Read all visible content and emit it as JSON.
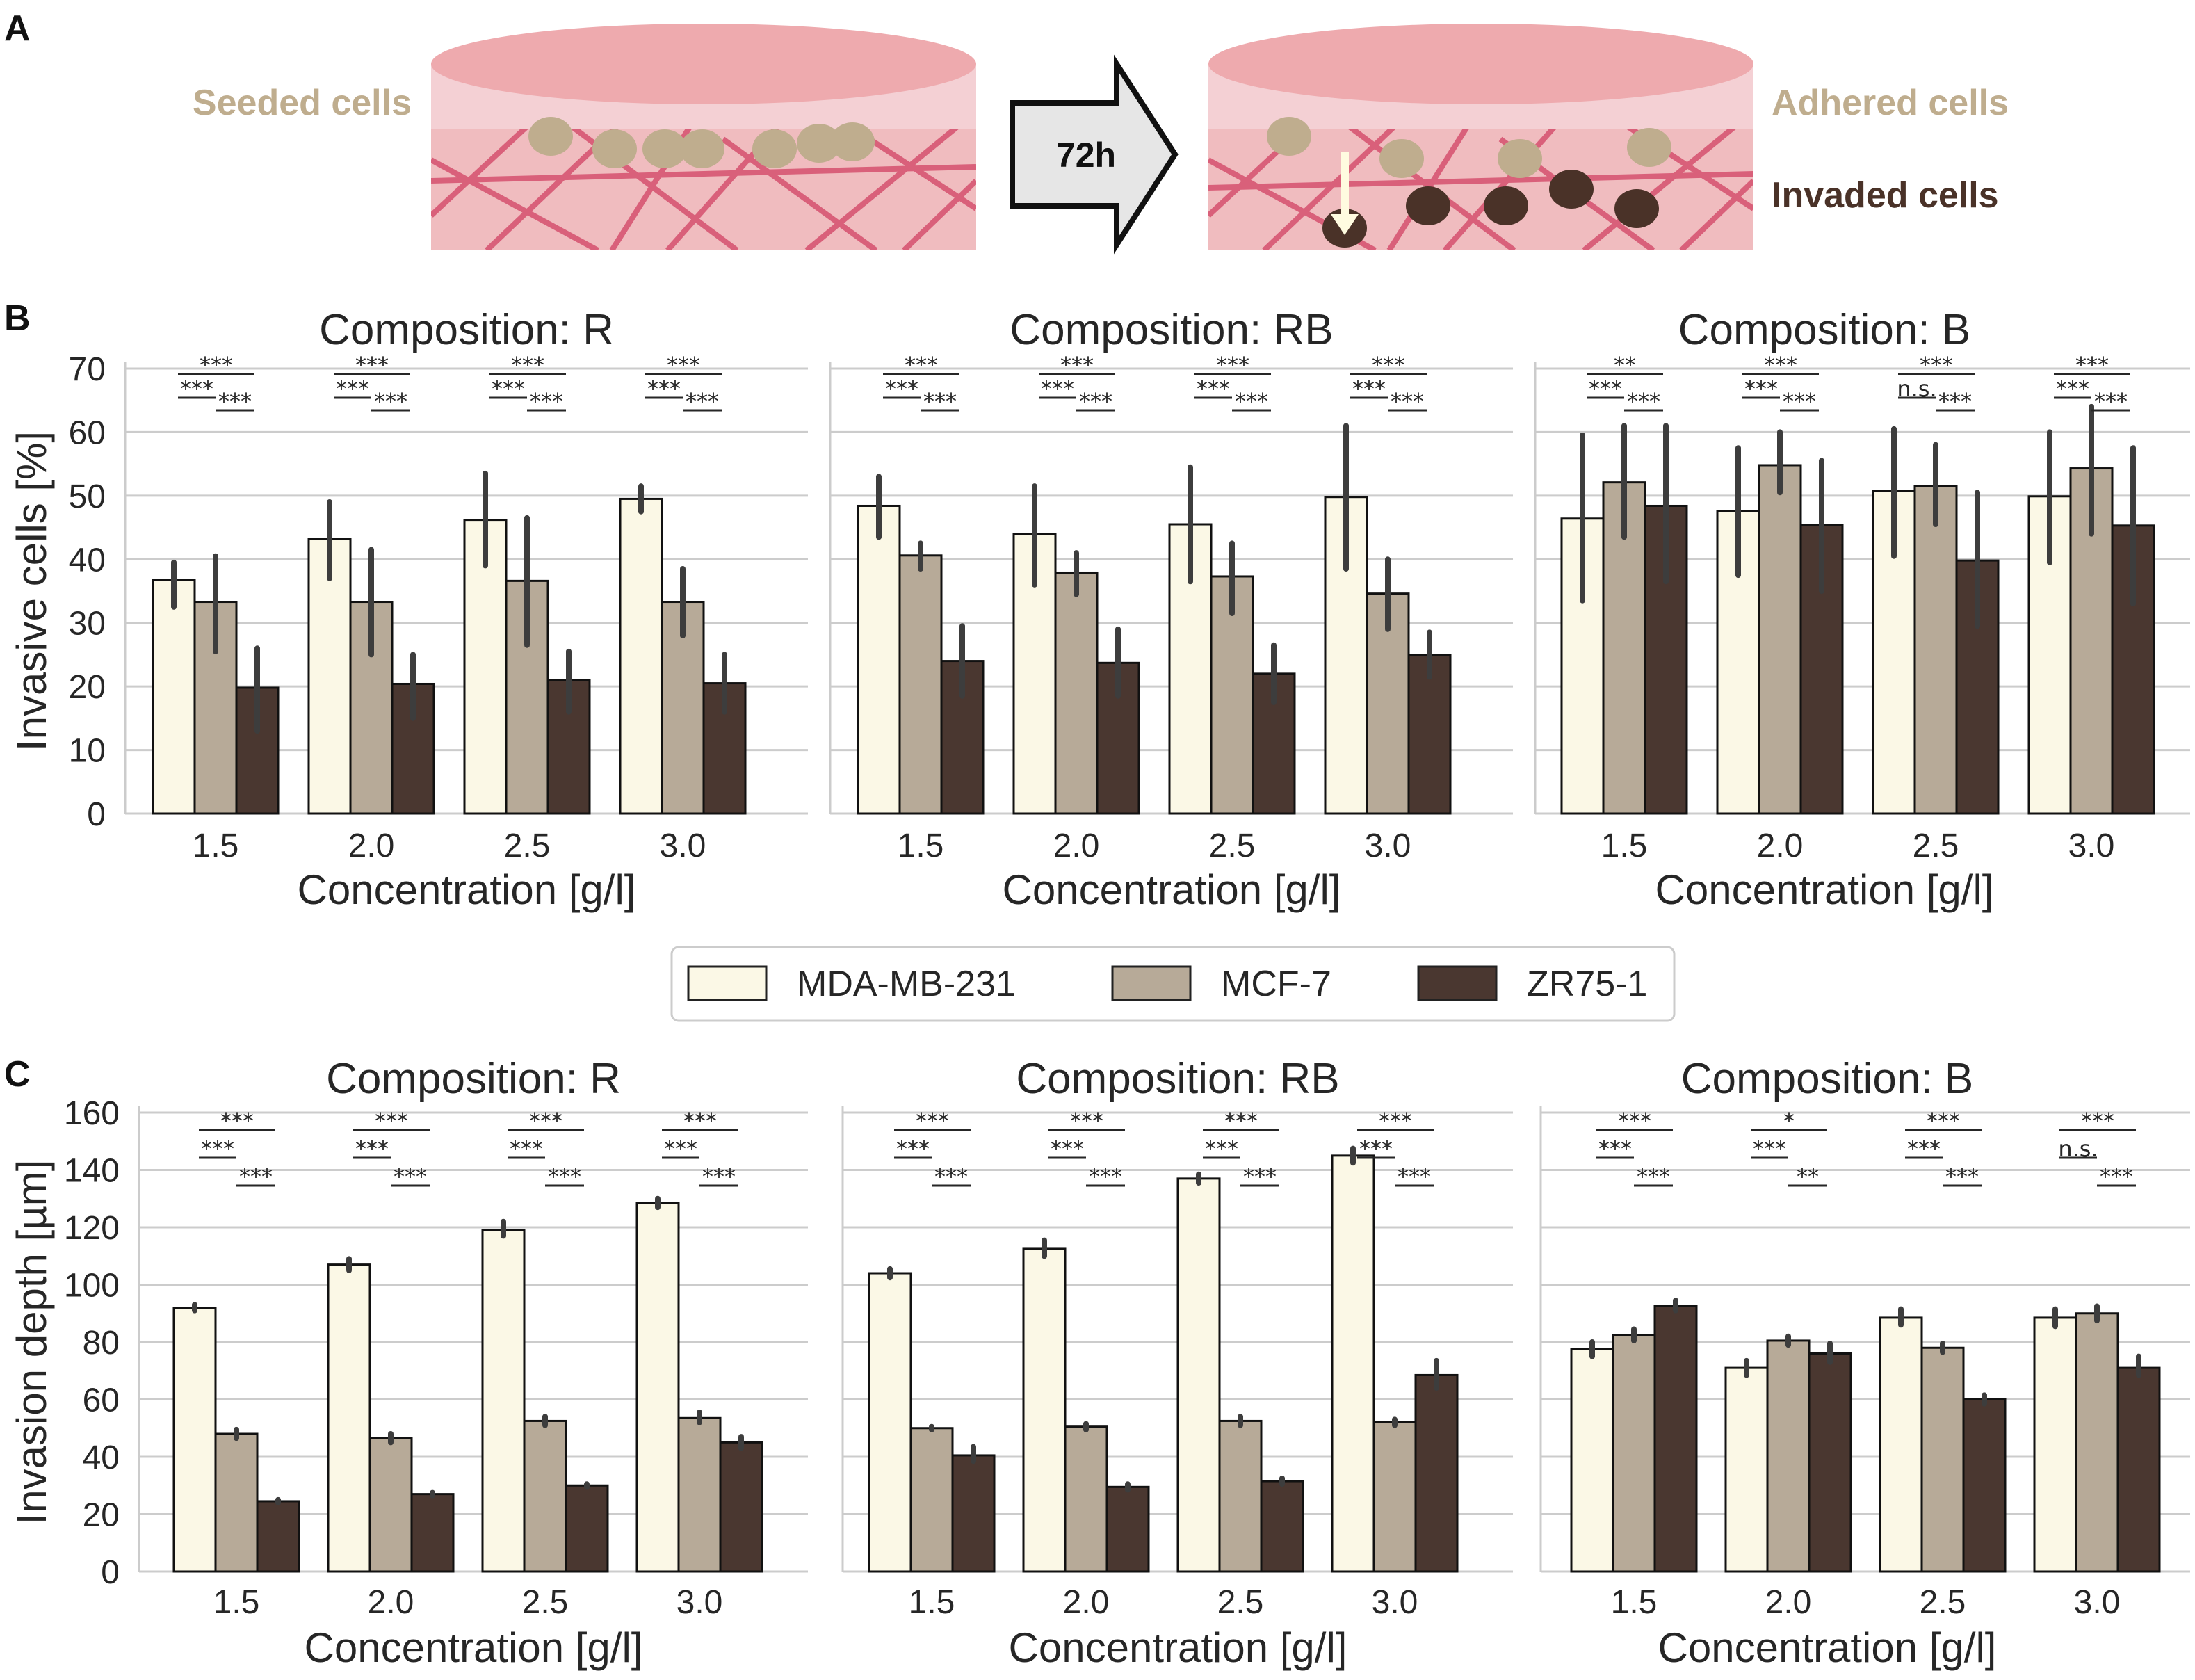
{
  "panel_labels": {
    "a": "A",
    "b": "B",
    "c": "C"
  },
  "schematic": {
    "seeded_label": "Seeded cells",
    "arrow_label": "72h",
    "adhered_label": "Adhered cells",
    "invaded_label": "Invaded cells",
    "colors": {
      "gel_top": "#eeaaae",
      "gel_top_light": "#f4d0d4",
      "gel_body": "#f0bcbf",
      "fiber": "#d9607a",
      "adhered_cell": "#bfad8e",
      "invaded_cell": "#4a3228",
      "arrow_fill": "#e6e6e6",
      "label_seeded": "#bfad8e",
      "label_invaded": "#4a3228"
    }
  },
  "legend": {
    "items": [
      {
        "name": "MDA-MB-231",
        "color": "#fbf8e6"
      },
      {
        "name": "MCF-7",
        "color": "#b7aa98"
      },
      {
        "name": "ZR75-1",
        "color": "#4a3730"
      }
    ]
  },
  "chart_data": [
    {
      "type": "bar",
      "panel": "B",
      "title": "Composition: R",
      "xlabel": "Concentration [g/l]",
      "ylabel": "Invasive cells [%]",
      "ylim": [
        0,
        70
      ],
      "yticks": [
        "0",
        "10",
        "20",
        "30",
        "40",
        "50",
        "60",
        "70"
      ],
      "grid": true,
      "categories": [
        "1.5",
        "2.0",
        "2.5",
        "3.0"
      ],
      "series": [
        {
          "name": "MDA-MB-231",
          "values": [
            36.8,
            43.2,
            46.2,
            49.5
          ],
          "err_low": [
            32.5,
            37.0,
            39.0,
            47.5
          ],
          "err_high": [
            39.5,
            49.0,
            53.5,
            51.5
          ]
        },
        {
          "name": "MCF-7",
          "values": [
            33.3,
            33.3,
            36.6,
            33.3
          ],
          "err_low": [
            25.5,
            25.0,
            26.5,
            28.0
          ],
          "err_high": [
            40.5,
            41.5,
            46.5,
            38.5
          ]
        },
        {
          "name": "ZR75-1",
          "values": [
            19.8,
            20.4,
            21.0,
            20.5
          ],
          "err_low": [
            13.0,
            15.0,
            16.0,
            16.0
          ],
          "err_high": [
            26.0,
            25.0,
            25.5,
            25.0
          ]
        }
      ],
      "significance": [
        {
          "top": "***",
          "left": "***",
          "right": "***"
        },
        {
          "top": "***",
          "left": "***",
          "right": "***"
        },
        {
          "top": "***",
          "left": "***",
          "right": "***"
        },
        {
          "top": "***",
          "left": "***",
          "right": "***"
        }
      ]
    },
    {
      "type": "bar",
      "panel": "B",
      "title": "Composition: RB",
      "xlabel": "Concentration [g/l]",
      "ylabel": "",
      "ylim": [
        0,
        70
      ],
      "yticks": [],
      "grid": true,
      "categories": [
        "1.5",
        "2.0",
        "2.5",
        "3.0"
      ],
      "series": [
        {
          "name": "MDA-MB-231",
          "values": [
            48.4,
            44.0,
            45.5,
            49.8
          ],
          "err_low": [
            43.5,
            36.0,
            36.5,
            38.5
          ],
          "err_high": [
            53.0,
            51.5,
            54.5,
            61.0
          ]
        },
        {
          "name": "MCF-7",
          "values": [
            40.6,
            37.9,
            37.3,
            34.6
          ],
          "err_low": [
            38.5,
            34.5,
            31.5,
            29.0
          ],
          "err_high": [
            42.5,
            41.0,
            42.5,
            40.0
          ]
        },
        {
          "name": "ZR75-1",
          "values": [
            24.0,
            23.7,
            22.0,
            24.9
          ],
          "err_low": [
            18.5,
            18.5,
            17.5,
            21.5
          ],
          "err_high": [
            29.5,
            29.0,
            26.5,
            28.5
          ]
        }
      ],
      "significance": [
        {
          "top": "***",
          "left": "***",
          "right": "***"
        },
        {
          "top": "***",
          "left": "***",
          "right": "***"
        },
        {
          "top": "***",
          "left": "***",
          "right": "***"
        },
        {
          "top": "***",
          "left": "***",
          "right": "***"
        }
      ]
    },
    {
      "type": "bar",
      "panel": "B",
      "title": "Composition: B",
      "xlabel": "Concentration [g/l]",
      "ylabel": "",
      "ylim": [
        0,
        70
      ],
      "yticks": [],
      "grid": true,
      "categories": [
        "1.5",
        "2.0",
        "2.5",
        "3.0"
      ],
      "series": [
        {
          "name": "MDA-MB-231",
          "values": [
            46.4,
            47.6,
            50.8,
            49.9
          ],
          "err_low": [
            33.5,
            37.5,
            40.5,
            39.5
          ],
          "err_high": [
            59.5,
            57.5,
            60.5,
            60.0
          ]
        },
        {
          "name": "MCF-7",
          "values": [
            52.1,
            54.8,
            51.5,
            54.3
          ],
          "err_low": [
            43.5,
            50.5,
            45.5,
            44.0
          ],
          "err_high": [
            61.0,
            60.0,
            58.0,
            64.0
          ]
        },
        {
          "name": "ZR75-1",
          "values": [
            48.4,
            45.4,
            39.8,
            45.3
          ],
          "err_low": [
            36.5,
            35.0,
            29.5,
            33.0
          ],
          "err_high": [
            61.0,
            55.5,
            50.5,
            57.5
          ]
        }
      ],
      "significance": [
        {
          "top": "**",
          "left": "***",
          "right": "***"
        },
        {
          "top": "***",
          "left": "***",
          "right": "***"
        },
        {
          "top": "***",
          "left": "n.s.",
          "right": "***"
        },
        {
          "top": "***",
          "left": "***",
          "right": "***"
        }
      ]
    },
    {
      "type": "bar",
      "panel": "C",
      "title": "Composition: R",
      "xlabel": "Concentration [g/l]",
      "ylabel": "Invasion depth [µm]",
      "ylim": [
        0,
        160
      ],
      "yticks": [
        "0",
        "20",
        "40",
        "60",
        "80",
        "100",
        "120",
        "140",
        "160"
      ],
      "grid": true,
      "categories": [
        "1.5",
        "2.0",
        "2.5",
        "3.0"
      ],
      "series": [
        {
          "name": "MDA-MB-231",
          "values": [
            92,
            107,
            119,
            128.5
          ],
          "err_low": [
            91,
            105,
            117,
            127
          ],
          "err_high": [
            93,
            109,
            122,
            130
          ]
        },
        {
          "name": "MCF-7",
          "values": [
            48,
            46.5,
            52.5,
            53.5
          ],
          "err_low": [
            46.5,
            45,
            51,
            52
          ],
          "err_high": [
            49.5,
            48,
            54,
            55.5
          ]
        },
        {
          "name": "ZR75-1",
          "values": [
            24.5,
            27,
            30,
            45
          ],
          "err_low": [
            24,
            26.5,
            29.5,
            43
          ],
          "err_high": [
            25,
            27.5,
            30.5,
            47
          ]
        }
      ],
      "significance": [
        {
          "top": "***",
          "left": "***",
          "right": "***"
        },
        {
          "top": "***",
          "left": "***",
          "right": "***"
        },
        {
          "top": "***",
          "left": "***",
          "right": "***"
        },
        {
          "top": "***",
          "left": "***",
          "right": "***"
        }
      ]
    },
    {
      "type": "bar",
      "panel": "C",
      "title": "Composition: RB",
      "xlabel": "Concentration [g/l]",
      "ylabel": "",
      "ylim": [
        0,
        160
      ],
      "yticks": [],
      "grid": true,
      "categories": [
        "1.5",
        "2.0",
        "2.5",
        "3.0"
      ],
      "series": [
        {
          "name": "MDA-MB-231",
          "values": [
            104,
            112.5,
            137,
            145
          ],
          "err_low": [
            102.5,
            110,
            135.5,
            142.5
          ],
          "err_high": [
            105.5,
            115.5,
            138.5,
            147.5
          ]
        },
        {
          "name": "MCF-7",
          "values": [
            50,
            50.5,
            52.5,
            52
          ],
          "err_low": [
            49.5,
            49.5,
            51,
            51
          ],
          "err_high": [
            50.5,
            51.5,
            54,
            53
          ]
        },
        {
          "name": "ZR75-1",
          "values": [
            40.5,
            29.5,
            31.5,
            68.5
          ],
          "err_low": [
            38.5,
            28.5,
            30.5,
            64
          ],
          "err_high": [
            43.5,
            30.5,
            32.5,
            73.5
          ]
        }
      ],
      "significance": [
        {
          "top": "***",
          "left": "***",
          "right": "***"
        },
        {
          "top": "***",
          "left": "***",
          "right": "***"
        },
        {
          "top": "***",
          "left": "***",
          "right": "***"
        },
        {
          "top": "***",
          "left": "***",
          "right": "***"
        }
      ]
    },
    {
      "type": "bar",
      "panel": "C",
      "title": "Composition: B",
      "xlabel": "Concentration [g/l]",
      "ylabel": "",
      "ylim": [
        0,
        160
      ],
      "yticks": [],
      "grid": true,
      "categories": [
        "1.5",
        "2.0",
        "2.5",
        "3.0"
      ],
      "series": [
        {
          "name": "MDA-MB-231",
          "values": [
            77.5,
            71,
            88.5,
            88.5
          ],
          "err_low": [
            75,
            68.5,
            86,
            85.5
          ],
          "err_high": [
            80,
            73.5,
            91.5,
            91.5
          ]
        },
        {
          "name": "MCF-7",
          "values": [
            82.5,
            80.5,
            78,
            90
          ],
          "err_low": [
            80.5,
            79,
            76.5,
            87.5
          ],
          "err_high": [
            84.5,
            82,
            79.5,
            92.5
          ]
        },
        {
          "name": "ZR75-1",
          "values": [
            92.5,
            76,
            60,
            71
          ],
          "err_low": [
            91,
            73,
            58.5,
            68.5
          ],
          "err_high": [
            94.5,
            79.5,
            61.5,
            75
          ]
        }
      ],
      "significance": [
        {
          "top": "***",
          "left": "***",
          "right": "***"
        },
        {
          "top": "*",
          "left": "***",
          "right": "**"
        },
        {
          "top": "***",
          "left": "***",
          "right": "***"
        },
        {
          "top": "***",
          "left": "n.s.",
          "right": "***"
        }
      ]
    }
  ]
}
